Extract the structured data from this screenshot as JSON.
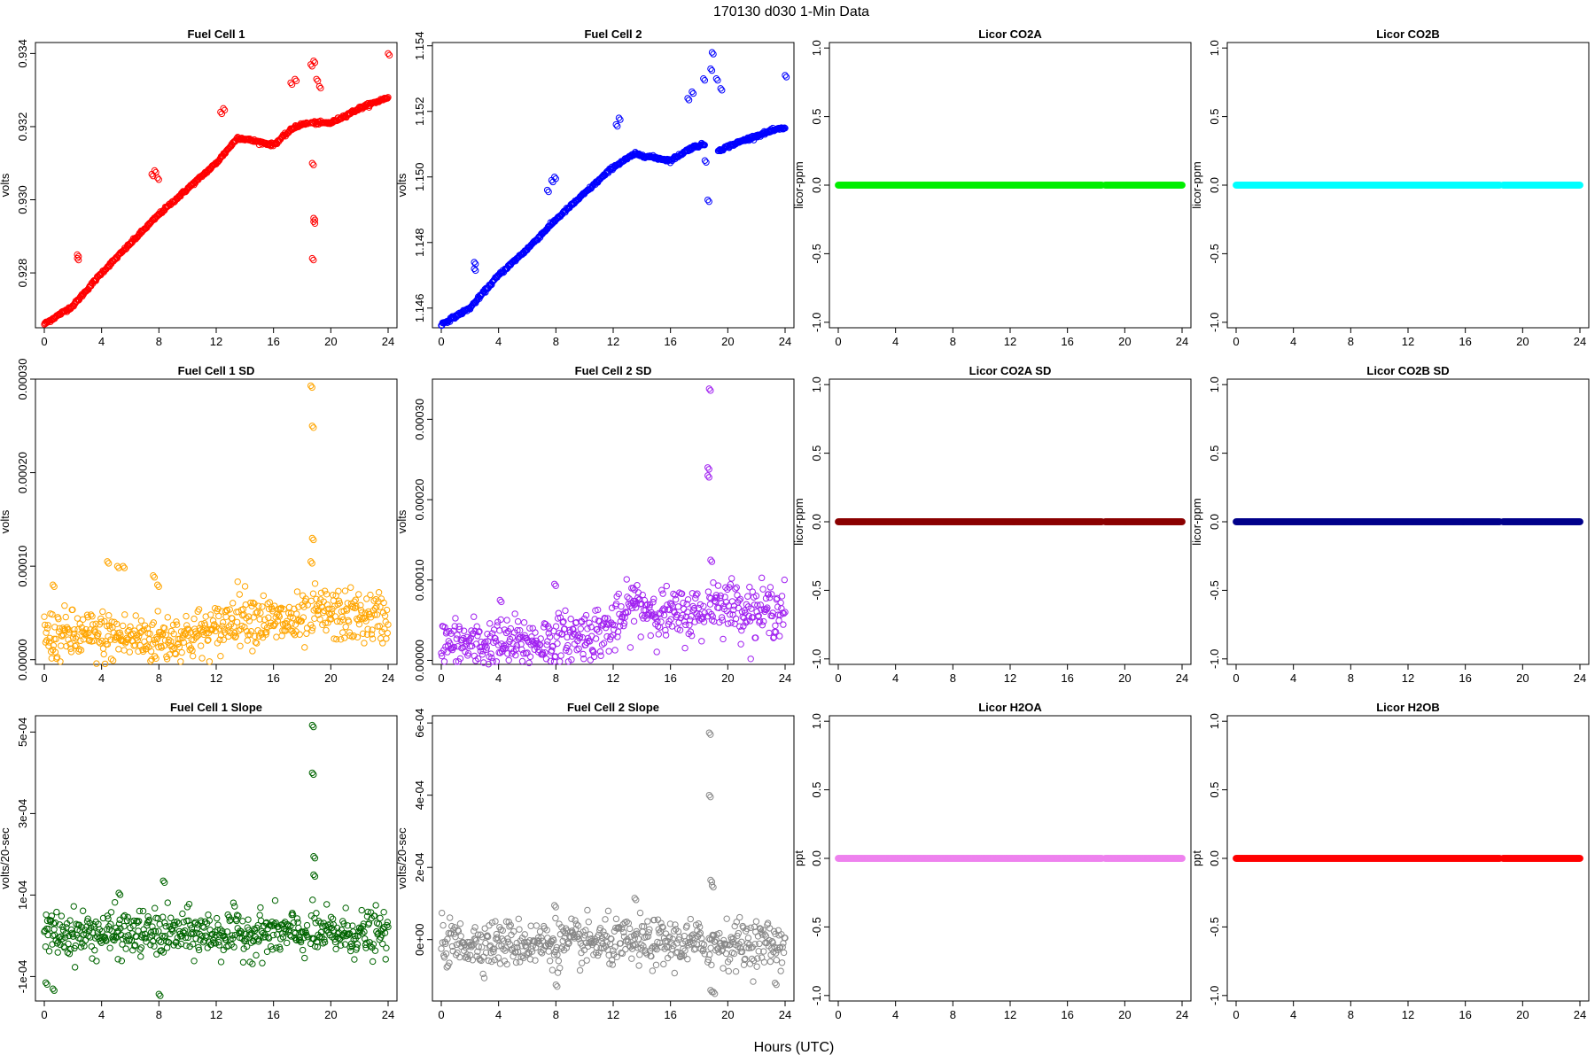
{
  "figure": {
    "suptitle": "170130   d030   1-Min Data",
    "xlabel": "Hours (UTC)"
  },
  "chart_data": [
    {
      "type": "scatter",
      "title": "Fuel Cell 1",
      "ylabel": "volts",
      "color": "#ff0000",
      "marker": "open-circle",
      "xlim": [
        0,
        24
      ],
      "ylim": [
        0.9265,
        0.9343
      ],
      "xticks": [
        "0",
        "4",
        "8",
        "12",
        "16",
        "20",
        "24"
      ],
      "yticks": [
        0.928,
        0.93,
        0.932,
        0.934
      ],
      "ytick_labels": [
        "0.928",
        "0.930",
        "0.932",
        "0.934"
      ],
      "gap": [
        18.4,
        18.6
      ],
      "series": {
        "x": [
          0,
          2,
          4,
          6,
          8,
          10,
          12,
          13.5,
          16,
          17.5,
          18.4,
          18.7,
          20,
          22,
          24
        ],
        "y": [
          0.9266,
          0.9271,
          0.928,
          0.9288,
          0.9296,
          0.9303,
          0.931,
          0.9317,
          0.9315,
          0.932,
          0.9321,
          0.9321,
          0.9321,
          0.9325,
          0.9328
        ]
      },
      "outliers": [
        [
          2.3,
          0.9284
        ],
        [
          2.3,
          0.9285
        ],
        [
          7.5,
          0.9307
        ],
        [
          7.7,
          0.9308
        ],
        [
          7.9,
          0.9306
        ],
        [
          12.3,
          0.9324
        ],
        [
          12.5,
          0.9325
        ],
        [
          17.2,
          0.9332
        ],
        [
          17.5,
          0.9333
        ],
        [
          18.6,
          0.9337
        ],
        [
          18.8,
          0.9338
        ],
        [
          19.0,
          0.9333
        ],
        [
          19.2,
          0.9331
        ],
        [
          18.7,
          0.9284
        ],
        [
          18.8,
          0.9294
        ],
        [
          18.8,
          0.9295
        ],
        [
          18.7,
          0.931
        ],
        [
          24,
          0.934
        ]
      ]
    },
    {
      "type": "scatter",
      "title": "Fuel Cell 2",
      "ylabel": "volts",
      "color": "#0000ff",
      "marker": "open-circle",
      "xlim": [
        0,
        24
      ],
      "ylim": [
        1.1454,
        1.1541
      ],
      "xticks": [
        "0",
        "4",
        "8",
        "12",
        "16",
        "20",
        "24"
      ],
      "yticks": [
        1.146,
        1.148,
        1.15,
        1.152,
        1.154
      ],
      "ytick_labels": [
        "1.146",
        "1.148",
        "1.150",
        "1.152",
        "1.154"
      ],
      "gap": [
        18.4,
        19.3
      ],
      "series": {
        "x": [
          0,
          2,
          4,
          6,
          8,
          10,
          12,
          13.5,
          16,
          17.5,
          18.4,
          19.3,
          21,
          23,
          24
        ],
        "y": [
          1.1455,
          1.146,
          1.147,
          1.1478,
          1.1487,
          1.1495,
          1.1503,
          1.1507,
          1.1505,
          1.1509,
          1.151,
          1.1508,
          1.1511,
          1.1514,
          1.1515
        ]
      },
      "outliers": [
        [
          2.3,
          1.1472
        ],
        [
          2.3,
          1.1474
        ],
        [
          7.4,
          1.1496
        ],
        [
          7.7,
          1.1499
        ],
        [
          7.9,
          1.15
        ],
        [
          12.2,
          1.1516
        ],
        [
          12.4,
          1.1518
        ],
        [
          17.2,
          1.1524
        ],
        [
          17.5,
          1.1526
        ],
        [
          18.3,
          1.153
        ],
        [
          18.8,
          1.1533
        ],
        [
          18.9,
          1.1538
        ],
        [
          19.2,
          1.153
        ],
        [
          19.5,
          1.1527
        ],
        [
          18.4,
          1.1505
        ],
        [
          18.6,
          1.1493
        ],
        [
          24,
          1.1531
        ]
      ]
    },
    {
      "type": "scatter",
      "title": "Licor CO2A",
      "ylabel": "licor-ppm",
      "color": "#00ee00",
      "marker": "filled-circle",
      "xlim": [
        0,
        24
      ],
      "ylim": [
        -1.04,
        1.04
      ],
      "xticks": [
        "0",
        "4",
        "8",
        "12",
        "16",
        "20",
        "24"
      ],
      "yticks": [
        -1.0,
        -0.5,
        0.0,
        0.5,
        1.0
      ],
      "ytick_labels": [
        "-1.0",
        "-0.5",
        "0.0",
        "0.5",
        "1.0"
      ],
      "gap": [
        18.4,
        18.6
      ],
      "series": {
        "x": [
          0,
          18.4,
          18.6,
          24
        ],
        "y": [
          0,
          0,
          0,
          0
        ]
      }
    },
    {
      "type": "scatter",
      "title": "Licor CO2B",
      "ylabel": "licor-ppm",
      "color": "#00ffff",
      "marker": "filled-circle",
      "xlim": [
        0,
        24
      ],
      "ylim": [
        -1.04,
        1.04
      ],
      "xticks": [
        "0",
        "4",
        "8",
        "12",
        "16",
        "20",
        "24"
      ],
      "yticks": [
        -1.0,
        -0.5,
        0.0,
        0.5,
        1.0
      ],
      "ytick_labels": [
        "-1.0",
        "-0.5",
        "0.0",
        "0.5",
        "1.0"
      ],
      "gap": [
        18.4,
        18.6
      ],
      "series": {
        "x": [
          0,
          18.4,
          18.6,
          24
        ],
        "y": [
          0,
          0,
          0,
          0
        ]
      }
    },
    {
      "type": "scatter",
      "title": "Fuel Cell 1 SD",
      "ylabel": "volts",
      "color": "#ffa500",
      "marker": "open-circle",
      "xlim": [
        0,
        24
      ],
      "ylim": [
        -5e-06,
        0.0003
      ],
      "xticks": [
        "0",
        "4",
        "8",
        "12",
        "16",
        "20",
        "24"
      ],
      "yticks": [
        0,
        0.0001,
        0.0002,
        0.0003
      ],
      "ytick_labels": [
        "0.00000",
        "0.00010",
        "0.00020",
        "0.00030"
      ],
      "gap": [
        18.4,
        18.6
      ],
      "series": {
        "x": [
          0,
          4,
          8,
          12,
          13.5,
          16,
          18.4,
          19,
          22,
          24
        ],
        "y": [
          2.5e-05,
          2.5e-05,
          2.2e-05,
          3e-05,
          5e-05,
          4e-05,
          4e-05,
          5e-05,
          4.5e-05,
          4.5e-05
        ]
      },
      "spread": 1.4e-05,
      "outliers": [
        [
          18.6,
          0.000293
        ],
        [
          18.7,
          0.00025
        ],
        [
          18.7,
          0.00013
        ],
        [
          18.6,
          0.000105
        ],
        [
          4.4,
          0.000105
        ],
        [
          5.1,
          0.0001
        ],
        [
          5.5,
          0.0001
        ],
        [
          7.6,
          9e-05
        ],
        [
          0.6,
          8e-05
        ],
        [
          7.9,
          8e-05
        ]
      ]
    },
    {
      "type": "scatter",
      "title": "Fuel Cell 2 SD",
      "ylabel": "volts",
      "color": "#a020f0",
      "marker": "open-circle",
      "xlim": [
        0,
        24
      ],
      "ylim": [
        -5e-06,
        0.00035
      ],
      "xticks": [
        "0",
        "4",
        "8",
        "12",
        "16",
        "20",
        "24"
      ],
      "yticks": [
        0,
        0.0001,
        0.0002,
        0.0003
      ],
      "ytick_labels": [
        "0.00000",
        "0.00010",
        "0.00020",
        "0.00030"
      ],
      "gap": [
        18.4,
        18.6
      ],
      "series": {
        "x": [
          0,
          4,
          8,
          12,
          13.5,
          16,
          18.4,
          19,
          22,
          24
        ],
        "y": [
          2e-05,
          2e-05,
          2.5e-05,
          4e-05,
          7e-05,
          5.5e-05,
          6e-05,
          7.5e-05,
          6e-05,
          6.5e-05
        ]
      },
      "spread": 1.6e-05,
      "outliers": [
        [
          18.7,
          0.000338
        ],
        [
          18.6,
          0.00024
        ],
        [
          18.6,
          0.00023
        ],
        [
          18.8,
          0.000125
        ],
        [
          7.9,
          9.5e-05
        ],
        [
          4.1,
          7.5e-05
        ],
        [
          13.4,
          9e-05
        ]
      ]
    },
    {
      "type": "scatter",
      "title": "Licor CO2A SD",
      "ylabel": "licor-ppm",
      "color": "#8b0000",
      "marker": "filled-circle",
      "xlim": [
        0,
        24
      ],
      "ylim": [
        -1.04,
        1.04
      ],
      "xticks": [
        "0",
        "4",
        "8",
        "12",
        "16",
        "20",
        "24"
      ],
      "yticks": [
        -1.0,
        -0.5,
        0.0,
        0.5,
        1.0
      ],
      "ytick_labels": [
        "-1.0",
        "-0.5",
        "0.0",
        "0.5",
        "1.0"
      ],
      "gap": [
        18.4,
        18.6
      ],
      "series": {
        "x": [
          0,
          18.4,
          18.6,
          24
        ],
        "y": [
          0,
          0,
          0,
          0
        ]
      }
    },
    {
      "type": "scatter",
      "title": "Licor CO2B SD",
      "ylabel": "licor-ppm",
      "color": "#00008b",
      "marker": "filled-circle",
      "xlim": [
        0,
        24
      ],
      "ylim": [
        -1.04,
        1.04
      ],
      "xticks": [
        "0",
        "4",
        "8",
        "12",
        "16",
        "20",
        "24"
      ],
      "yticks": [
        -1.0,
        -0.5,
        0.0,
        0.5,
        1.0
      ],
      "ytick_labels": [
        "-1.0",
        "-0.5",
        "0.0",
        "0.5",
        "1.0"
      ],
      "gap": [
        18.4,
        18.6
      ],
      "series": {
        "x": [
          0,
          18.4,
          18.6,
          24
        ],
        "y": [
          0,
          0,
          0,
          0
        ]
      }
    },
    {
      "type": "scatter",
      "title": "Fuel Cell 1 Slope",
      "ylabel": "volts/20-sec",
      "color": "#006400",
      "marker": "open-circle",
      "xlim": [
        0,
        24
      ],
      "ylim": [
        -0.00016,
        0.00054
      ],
      "xticks": [
        "0",
        "4",
        "8",
        "12",
        "16",
        "20",
        "24"
      ],
      "yticks": [
        -0.0001,
        0.0001,
        0.0003,
        0.0005
      ],
      "ytick_labels": [
        "-1e-04",
        "1e-04",
        "3e-04",
        "5e-04"
      ],
      "gap": [
        18.4,
        18.6
      ],
      "series": {
        "x": [
          0,
          24
        ],
        "y": [
          5e-06,
          5e-06
        ]
      },
      "spread": 2.8e-05,
      "outliers": [
        [
          18.7,
          0.000517
        ],
        [
          18.7,
          0.0004
        ],
        [
          18.8,
          0.000195
        ],
        [
          18.8,
          0.00015
        ],
        [
          8.0,
          -0.000143
        ],
        [
          0.6,
          -0.00013
        ],
        [
          0.1,
          -0.000115
        ],
        [
          8.3,
          0.000135
        ],
        [
          5.2,
          0.000105
        ]
      ]
    },
    {
      "type": "scatter",
      "title": "Fuel Cell 2 Slope",
      "ylabel": "volts/20-sec",
      "color": "#888888",
      "marker": "open-circle",
      "xlim": [
        0,
        24
      ],
      "ylim": [
        -0.00017,
        0.00062
      ],
      "xticks": [
        "0",
        "4",
        "8",
        "12",
        "16",
        "20",
        "24"
      ],
      "yticks": [
        0,
        0.0002,
        0.0004,
        0.0006
      ],
      "ytick_labels": [
        "0e+00",
        "2e-04",
        "4e-04",
        "6e-04"
      ],
      "gap": [
        18.4,
        18.6
      ],
      "series": {
        "x": [
          0,
          24
        ],
        "y": [
          -1e-05,
          -1e-05
        ]
      },
      "spread": 3.2e-05,
      "outliers": [
        [
          18.7,
          0.000573
        ],
        [
          18.7,
          0.0004
        ],
        [
          18.8,
          0.000165
        ],
        [
          18.9,
          0.00015
        ],
        [
          18.8,
          -0.00014
        ],
        [
          19.0,
          -0.000145
        ],
        [
          8.0,
          -0.000125
        ],
        [
          13.5,
          0.000115
        ],
        [
          7.9,
          9.5e-05
        ],
        [
          23.3,
          -0.00012
        ]
      ]
    },
    {
      "type": "scatter",
      "title": "Licor H2OA",
      "ylabel": "ppt",
      "color": "#ee82ee",
      "marker": "filled-circle",
      "xlim": [
        0,
        24
      ],
      "ylim": [
        -1.04,
        1.04
      ],
      "xticks": [
        "0",
        "4",
        "8",
        "12",
        "16",
        "20",
        "24"
      ],
      "yticks": [
        -1.0,
        -0.5,
        0.0,
        0.5,
        1.0
      ],
      "ytick_labels": [
        "-1.0",
        "-0.5",
        "0.0",
        "0.5",
        "1.0"
      ],
      "gap": [
        18.4,
        18.6
      ],
      "series": {
        "x": [
          0,
          18.4,
          18.6,
          24
        ],
        "y": [
          0,
          0,
          0,
          0
        ]
      }
    },
    {
      "type": "scatter",
      "title": "Licor H2OB",
      "ylabel": "ppt",
      "color": "#ff0000",
      "marker": "filled-circle",
      "xlim": [
        0,
        24
      ],
      "ylim": [
        -1.04,
        1.04
      ],
      "xticks": [
        "0",
        "4",
        "8",
        "12",
        "16",
        "20",
        "24"
      ],
      "yticks": [
        -1.0,
        -0.5,
        0.0,
        0.5,
        1.0
      ],
      "ytick_labels": [
        "-1.0",
        "-0.5",
        "0.0",
        "0.5",
        "1.0"
      ],
      "gap": [
        18.4,
        18.6
      ],
      "series": {
        "x": [
          0,
          18.4,
          18.6,
          24
        ],
        "y": [
          0,
          0,
          0,
          0
        ]
      }
    }
  ]
}
